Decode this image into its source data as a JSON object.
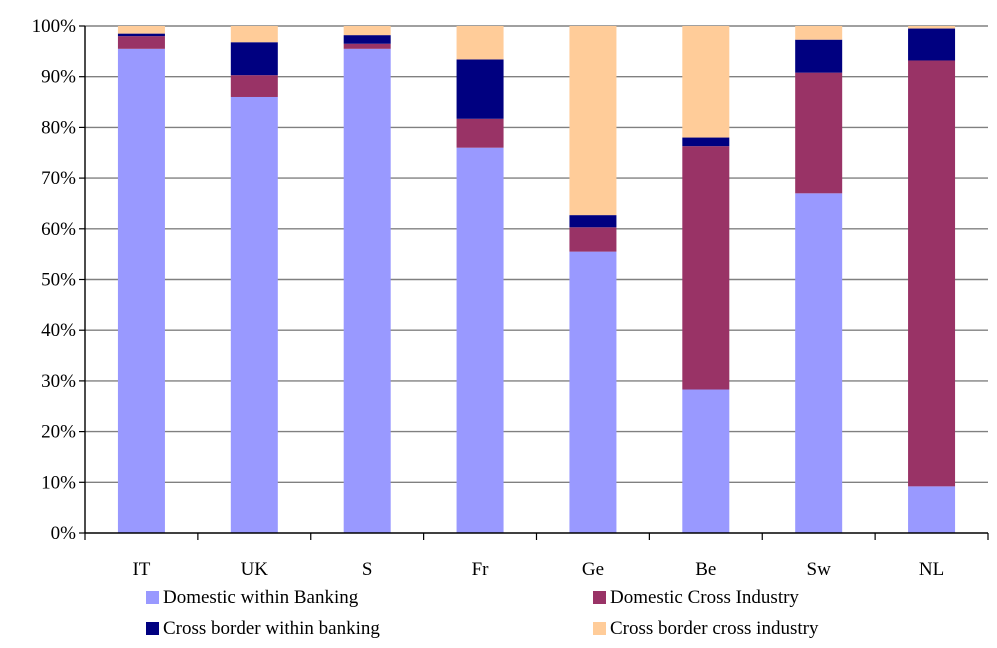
{
  "chart_data": {
    "type": "bar",
    "stacked": true,
    "categories": [
      "IT",
      "UK",
      "S",
      "Fr",
      "Ge",
      "Be",
      "Sw",
      "NL"
    ],
    "series": [
      {
        "name": "Domestic within Banking",
        "color": "#9999FF",
        "values": [
          95.5,
          86.0,
          95.5,
          76.0,
          55.5,
          28.3,
          67.0,
          9.2
        ]
      },
      {
        "name": "Domestic Cross Industry",
        "color": "#993366",
        "values": [
          2.5,
          4.3,
          1.0,
          5.7,
          4.8,
          48.0,
          23.8,
          84.0
        ]
      },
      {
        "name": "Cross border within banking",
        "color": "#000080",
        "values": [
          0.5,
          6.5,
          1.7,
          11.7,
          2.4,
          1.7,
          6.5,
          6.3
        ]
      },
      {
        "name": "Cross border cross industry",
        "color": "#FFCC99",
        "values": [
          1.5,
          3.2,
          1.8,
          6.6,
          37.3,
          22.0,
          2.7,
          0.5
        ]
      }
    ],
    "ylim": [
      0,
      100
    ],
    "yticks": [
      "0%",
      "10%",
      "20%",
      "30%",
      "40%",
      "50%",
      "60%",
      "70%",
      "80%",
      "90%",
      "100%"
    ],
    "grid": true,
    "legend_position": "bottom"
  }
}
